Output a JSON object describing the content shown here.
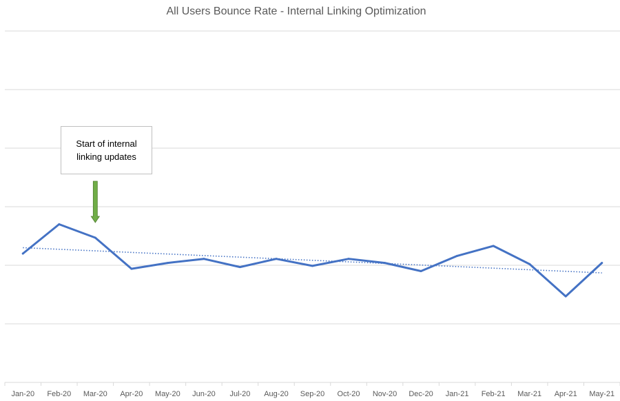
{
  "chart_data": {
    "type": "line",
    "title": "All Users Bounce Rate - Internal Linking Optimization",
    "xlabel": "",
    "ylabel": "",
    "categories": [
      "Jan-20",
      "Feb-20",
      "Mar-20",
      "Apr-20",
      "May-20",
      "Jun-20",
      "Jul-20",
      "Aug-20",
      "Sep-20",
      "Oct-20",
      "Nov-20",
      "Dec-20",
      "Jan-21",
      "Feb-21",
      "Mar-21",
      "Apr-21",
      "May-21"
    ],
    "series": [
      {
        "values": [
          2.2,
          2.7,
          2.47,
          1.94,
          2.04,
          2.11,
          1.97,
          2.11,
          1.99,
          2.11,
          2.04,
          1.9,
          2.16,
          2.33,
          2.02,
          1.47,
          2.04
        ]
      }
    ],
    "trendline": {
      "style": "dotted linear",
      "start": 2.3,
      "end": 1.87
    },
    "ylim": [
      0,
      6
    ],
    "y_gridlines": true,
    "y_tick_labels_shown": false,
    "annotation": {
      "text": "Start of internal linking updates",
      "category": "Mar-20",
      "arrow": "down"
    },
    "colors": {
      "line": "#4472c4",
      "trend": "#4472c4",
      "arrow": "#70ad47",
      "grid": "#d9d9d9",
      "text": "#595959"
    }
  }
}
